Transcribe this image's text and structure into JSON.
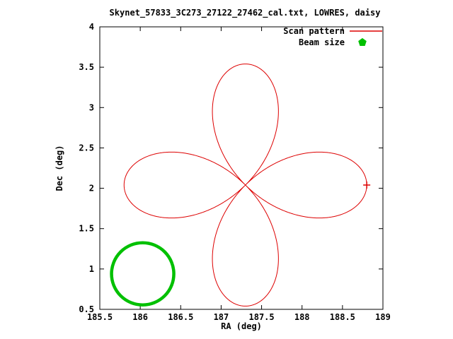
{
  "title": "Skynet_57833_3C273_27122_27462_cal.txt, LOWRES, daisy",
  "legend": {
    "scan_label": "Scan pattern",
    "beam_label": "Beam size"
  },
  "axes": {
    "xlabel": "RA (deg)",
    "ylabel": "Dec (deg)"
  },
  "colors": {
    "scan": "#dd0000",
    "beam": "#00c000",
    "foreground": "#000000",
    "background": "#ffffff"
  },
  "chart_data": {
    "type": "line",
    "title": "Skynet_57833_3C273_27122_27462_cal.txt, LOWRES, daisy",
    "xlabel": "RA (deg)",
    "ylabel": "Dec (deg)",
    "xlim": [
      185.5,
      189
    ],
    "ylim": [
      0.5,
      4
    ],
    "xticks": [
      185.5,
      186,
      186.5,
      187,
      187.5,
      188,
      188.5,
      189
    ],
    "xtick_labels": [
      "185.5",
      "186",
      "186.5",
      "187",
      "187.5",
      "188",
      "188.5",
      "189"
    ],
    "yticks": [
      0.5,
      1,
      1.5,
      2,
      2.5,
      3,
      3.5,
      4
    ],
    "ytick_labels": [
      "0.5",
      "1",
      "1.5",
      "2",
      "2.5",
      "3",
      "3.5",
      "4"
    ],
    "grid": false,
    "legend_position": "top-right",
    "series": [
      {
        "name": "Scan pattern",
        "shape": "rose",
        "petals": 4,
        "center": [
          187.3,
          2.04
        ],
        "amplitude": 1.5,
        "color": "#dd0000",
        "linewidth": 1
      },
      {
        "name": "Beam size",
        "shape": "circle",
        "center": [
          186.03,
          0.94
        ],
        "radius": 0.385,
        "color": "#00c000",
        "linewidth": 4.5
      }
    ],
    "marker": {
      "type": "plus",
      "x": 188.8,
      "y": 2.04,
      "color": "#dd0000"
    }
  }
}
